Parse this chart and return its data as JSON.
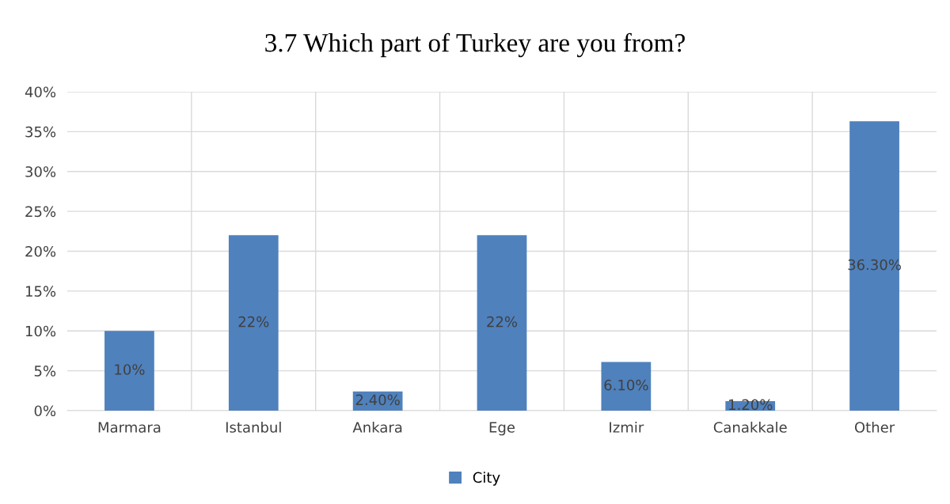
{
  "chart_data": {
    "type": "bar",
    "title": "3.7 Which part of Turkey are you from?",
    "categories": [
      "Marmara",
      "Istanbul",
      "Ankara",
      "Ege",
      "Izmir",
      "Canakkale",
      "Other"
    ],
    "series": [
      {
        "name": "City",
        "color": "#4f81bd",
        "values": [
          10,
          22,
          2.4,
          22,
          6.1,
          1.2,
          36.3
        ],
        "value_labels": [
          "10%",
          "22%",
          "2.40%",
          "22%",
          "6.10%",
          "1.20%",
          "36.30%"
        ]
      }
    ],
    "ylim": [
      0,
      40
    ],
    "yticks": [
      {
        "value": 0,
        "label": "0%"
      },
      {
        "value": 5,
        "label": "5%"
      },
      {
        "value": 10,
        "label": "10%"
      },
      {
        "value": 15,
        "label": "15%"
      },
      {
        "value": 20,
        "label": "20%"
      },
      {
        "value": 25,
        "label": "25%"
      },
      {
        "value": 30,
        "label": "30%"
      },
      {
        "value": 35,
        "label": "35%"
      },
      {
        "value": 40,
        "label": "40%"
      }
    ],
    "grid": true,
    "legend": "bottom"
  }
}
